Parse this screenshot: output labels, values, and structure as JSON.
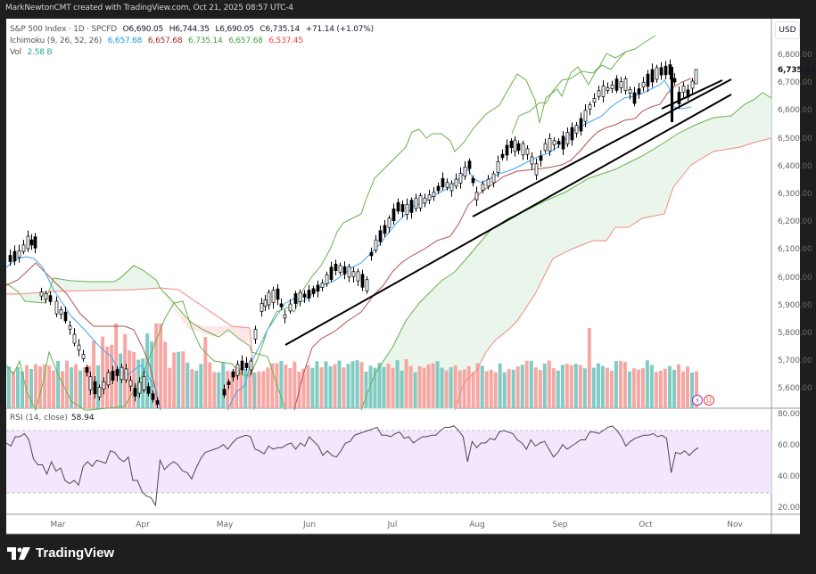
{
  "header": {
    "credit": "MarkNewtonCMT created with TradingView.com, Oct 21, 2025 08:57 UTC-4"
  },
  "legend": {
    "symbol": "S&P 500 Index · 1D · SPCFD",
    "open": "O6,690.05",
    "high": "H6,744.35",
    "low": "L6,690.05",
    "close": "C6,735.14",
    "change": "+71.14 (+1.07%)",
    "ichimoku_label": "Ichimoku (9, 26, 52, 26)",
    "ichimoku_values": [
      {
        "value": "6,657.68",
        "color": "#2196f3"
      },
      {
        "value": "6,657.68",
        "color": "#a52a2a"
      },
      {
        "value": "6,735.14",
        "color": "#43a047"
      },
      {
        "value": "6,657.68",
        "color": "#43a047"
      },
      {
        "value": "6,537.45",
        "color": "#f44336"
      }
    ],
    "vol_label": "Vol",
    "vol_value": "2.58 B"
  },
  "price_axis": {
    "currency": "USD",
    "current_price": "6,735.14",
    "ticks": [
      "6,800.00",
      "6,700.00",
      "6,600.00",
      "6,500.00",
      "6,400.00",
      "6,300.00",
      "6,200.00",
      "6,100.00",
      "6,000.00",
      "5,900.00",
      "5,800.00",
      "5,700.00",
      "5,600.00"
    ]
  },
  "rsi": {
    "label": "RSI (14, close)",
    "value": "58.94",
    "ticks": [
      "80.00",
      "60.00",
      "40.00",
      "20.00"
    ]
  },
  "time_axis": {
    "months": [
      "Mar",
      "Apr",
      "May",
      "Jun",
      "Jul",
      "Aug",
      "Sep",
      "Oct",
      "Nov"
    ]
  },
  "footer": {
    "brand": "TradingView"
  },
  "colors": {
    "tenkan": "#2196f3",
    "kijun": "#a52a2a",
    "chikou": "#43a047",
    "senkou_a": "#43a047",
    "senkou_b": "#f44336",
    "vol_up": "#80cbc4",
    "vol_down": "#f7a7a3",
    "rsi_line": "#4a4a4a",
    "rsi_band": "#f3e6fd"
  },
  "chart_data": [
    {
      "type": "candlestick",
      "title": "S&P 500 Index · 1D · SPCFD",
      "xlabel": "",
      "ylabel": "USD",
      "ylim": [
        5550,
        6850
      ],
      "x_ticks": [
        "Mar",
        "Apr",
        "May",
        "Jun",
        "Jul",
        "Aug",
        "Sep",
        "Oct",
        "Nov"
      ],
      "last_bar": {
        "open": 6690.05,
        "high": 6744.35,
        "low": 6690.05,
        "close": 6735.14,
        "change": 71.14,
        "change_pct": 1.07
      },
      "approx_monthly_closes": {
        "Feb-end": 6000,
        "Mar": 5600,
        "Apr": 5570,
        "May": 5900,
        "Jun": 6180,
        "Jul": 6390,
        "Aug": 6450,
        "Sep": 6690,
        "Oct-20": 6735
      },
      "indicators": {
        "ichimoku": {
          "params": [
            9,
            26,
            52,
            26
          ],
          "tenkan": 6657.68,
          "kijun": 6657.68,
          "chikou": 6735.14,
          "senkou_a": 6657.68,
          "senkou_b": 6537.45
        },
        "volume": {
          "last": "2.58B"
        }
      },
      "annotations": [
        "Rising trendline from late May lows (~5,760) to Oct (~6,700)",
        "Rising trendline from early Aug low (~6,210) to Oct (~6,650)"
      ],
      "grid": false,
      "legend_position": "top-left"
    },
    {
      "type": "line",
      "title": "RSI (14, close)",
      "ylim": [
        15,
        85
      ],
      "y_ticks": [
        80,
        60,
        40,
        20
      ],
      "bands": [
        30,
        70
      ],
      "last_value": 58.94,
      "series": [
        {
          "name": "RSI",
          "values": [
            62,
            60,
            66,
            66,
            68,
            64,
            52,
            48,
            48,
            42,
            50,
            44,
            46,
            38,
            36,
            38,
            35,
            47,
            50,
            47,
            51,
            50,
            49,
            57,
            56,
            52,
            50,
            53,
            38,
            38,
            31,
            28,
            27,
            22,
            51,
            45,
            48,
            50,
            48,
            44,
            43,
            39,
            46,
            52,
            56,
            57,
            58,
            59,
            61,
            58,
            62,
            65,
            66,
            67,
            66,
            58,
            57,
            55,
            60,
            58,
            59,
            59,
            61,
            62,
            58,
            62,
            60,
            66,
            63,
            60,
            54,
            57,
            54,
            53,
            57,
            62,
            63,
            67,
            68,
            69,
            70,
            71,
            72,
            67,
            67,
            66,
            68,
            69,
            65,
            66,
            62,
            64,
            66,
            66,
            67,
            67,
            70,
            72,
            72,
            73,
            70,
            66,
            50,
            63,
            59,
            62,
            62,
            65,
            64,
            69,
            70,
            69,
            68,
            64,
            62,
            58,
            64,
            60,
            62,
            63,
            58,
            53,
            56,
            61,
            58,
            60,
            62,
            64,
            64,
            69,
            69,
            68,
            70,
            72,
            73,
            70,
            66,
            60,
            63,
            65,
            66,
            67,
            67,
            68,
            66,
            67,
            65,
            43,
            56,
            55,
            57,
            54,
            57,
            59
          ]
        }
      ]
    }
  ]
}
